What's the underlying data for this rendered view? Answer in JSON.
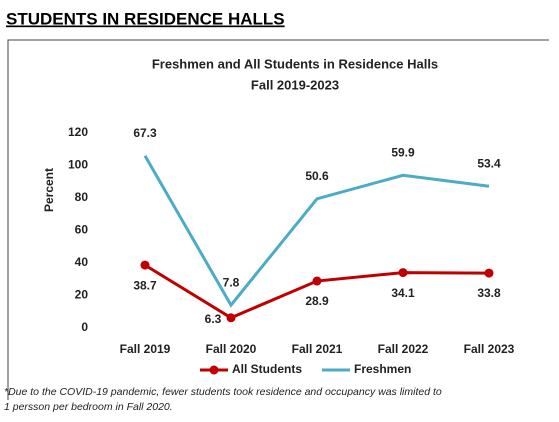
{
  "page_heading": "STUDENTS IN RESIDENCE HALLS",
  "chart_data": {
    "type": "line",
    "stacked": true,
    "title": [
      "Freshmen and All Students in Residence Halls",
      "Fall 2019-2023"
    ],
    "ylabel": "Percent",
    "categories": [
      "Fall 2019",
      "Fall 2020",
      "Fall 2021",
      "Fall 2022",
      "Fall 2023"
    ],
    "series": [
      {
        "name": "All Students",
        "color": "#c00000",
        "values": [
          38.7,
          6.3,
          28.9,
          34.1,
          33.8
        ]
      },
      {
        "name": "Freshmen",
        "color": "#4bacc6",
        "values": [
          67.3,
          7.8,
          50.6,
          59.9,
          53.4
        ]
      }
    ],
    "ylim": [
      0,
      120
    ],
    "yticks": [
      0,
      20,
      40,
      60,
      80,
      100,
      120
    ],
    "grid": false,
    "legend": "bottom",
    "footnote": [
      "*Due to the COVID-19 pandemic, fewer students took residence and occupancy was limited to",
      "1 persson per bedroom in Fall 2020."
    ]
  }
}
